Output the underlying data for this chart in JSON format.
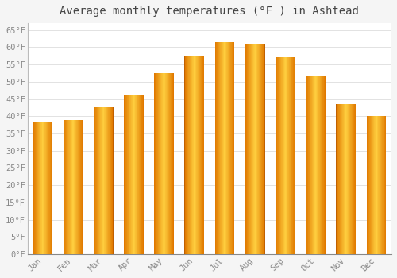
{
  "title": "Average monthly temperatures (°F ) in Ashtead",
  "months": [
    "Jan",
    "Feb",
    "Mar",
    "Apr",
    "May",
    "Jun",
    "Jul",
    "Aug",
    "Sep",
    "Oct",
    "Nov",
    "Dec"
  ],
  "values": [
    38.5,
    39.0,
    42.5,
    46.0,
    52.5,
    57.5,
    61.5,
    61.0,
    57.0,
    51.5,
    43.5,
    40.0
  ],
  "bar_color_center": "#FFCC44",
  "bar_color_edge": "#E07800",
  "background_color": "#F5F5F5",
  "plot_bg_color": "#FFFFFF",
  "grid_color": "#DDDDDD",
  "tick_label_color": "#888888",
  "title_color": "#444444",
  "ylim": [
    0,
    67
  ],
  "yticks": [
    0,
    5,
    10,
    15,
    20,
    25,
    30,
    35,
    40,
    45,
    50,
    55,
    60,
    65
  ],
  "ytick_labels": [
    "0°F",
    "5°F",
    "10°F",
    "15°F",
    "20°F",
    "25°F",
    "30°F",
    "35°F",
    "40°F",
    "45°F",
    "50°F",
    "55°F",
    "60°F",
    "65°F"
  ],
  "title_fontsize": 10,
  "tick_fontsize": 7.5,
  "bar_width": 0.65
}
